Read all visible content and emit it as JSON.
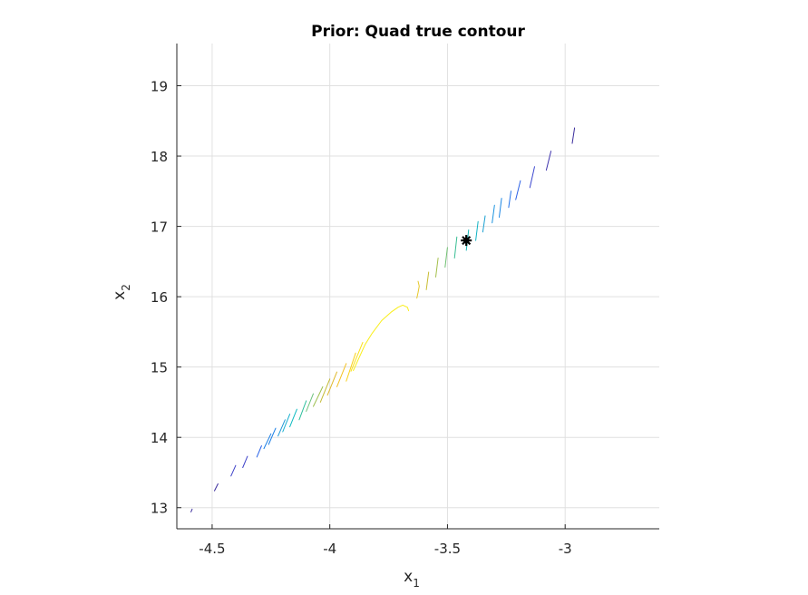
{
  "chart_data": {
    "type": "contour",
    "title": "Prior: Quad true contour",
    "xlabel": "x",
    "xlabel_sub": "1",
    "ylabel": "x",
    "ylabel_sub": "2",
    "xlim": [
      -4.65,
      -2.6
    ],
    "ylim": [
      12.7,
      19.6
    ],
    "xticks": [
      -4.5,
      -4,
      -3.5,
      -3
    ],
    "xtick_labels": [
      "-4.5",
      "-4",
      "-3.5",
      "-3"
    ],
    "yticks": [
      13,
      14,
      15,
      16,
      17,
      18,
      19
    ],
    "ytick_labels": [
      "13",
      "14",
      "15",
      "16",
      "17",
      "18",
      "19"
    ],
    "grid": true,
    "colormap": "parula",
    "marker": {
      "x": -3.42,
      "y": 16.8,
      "color": "#000000",
      "symbol": "star"
    },
    "segments": [
      {
        "x": [
          -4.59,
          -4.585
        ],
        "y": [
          12.94,
          12.98
        ],
        "color": "#3a2c9c"
      },
      {
        "x": [
          -4.49,
          -4.475
        ],
        "y": [
          13.24,
          13.34
        ],
        "color": "#3a2c9c"
      },
      {
        "x": [
          -4.42,
          -4.4
        ],
        "y": [
          13.45,
          13.6
        ],
        "color": "#3d41c8"
      },
      {
        "x": [
          -4.37,
          -4.35
        ],
        "y": [
          13.57,
          13.73
        ],
        "color": "#3d41c8"
      },
      {
        "x": [
          -4.31,
          -4.29
        ],
        "y": [
          13.72,
          13.88
        ],
        "color": "#2a63e8"
      },
      {
        "x": [
          -4.28,
          -4.25
        ],
        "y": [
          13.84,
          14.05
        ],
        "color": "#1b7fe6"
      },
      {
        "x": [
          -4.26,
          -4.23
        ],
        "y": [
          13.9,
          14.13
        ],
        "color": "#1b7fe6"
      },
      {
        "x": [
          -4.22,
          -4.19
        ],
        "y": [
          14.02,
          14.25
        ],
        "color": "#1f97d6"
      },
      {
        "x": [
          -4.2,
          -4.17
        ],
        "y": [
          14.08,
          14.33
        ],
        "color": "#13aecf"
      },
      {
        "x": [
          -4.17,
          -4.14
        ],
        "y": [
          14.15,
          14.4
        ],
        "color": "#0cbac0"
      },
      {
        "x": [
          -4.13,
          -4.1
        ],
        "y": [
          14.25,
          14.52
        ],
        "color": "#2ebf9d"
      },
      {
        "x": [
          -4.1,
          -4.07
        ],
        "y": [
          14.37,
          14.62
        ],
        "color": "#6bc17a"
      },
      {
        "x": [
          -4.07,
          -4.03
        ],
        "y": [
          14.44,
          14.72
        ],
        "color": "#9ec051"
      },
      {
        "x": [
          -4.04,
          -4.0
        ],
        "y": [
          14.5,
          14.83
        ],
        "color": "#c4bb35"
      },
      {
        "x": [
          -4.01,
          -3.97
        ],
        "y": [
          14.6,
          14.93
        ],
        "color": "#dfb82a"
      },
      {
        "x": [
          -3.97,
          -3.93
        ],
        "y": [
          14.72,
          15.05
        ],
        "color": "#f3c022"
      },
      {
        "x": [
          -3.93,
          -3.89
        ],
        "y": [
          14.8,
          15.2
        ],
        "color": "#f9d11c"
      },
      {
        "x": [
          -3.91,
          -3.86
        ],
        "y": [
          14.94,
          15.35
        ],
        "color": "#fbe01a"
      },
      {
        "x": [
          -3.9,
          -3.88,
          -3.85,
          -3.82,
          -3.78,
          -3.74,
          -3.71,
          -3.69,
          -3.67,
          -3.665
        ],
        "y": [
          14.95,
          15.1,
          15.32,
          15.48,
          15.66,
          15.78,
          15.85,
          15.88,
          15.85,
          15.8
        ],
        "color": "#f9ee18"
      },
      {
        "x": [
          -3.63,
          -3.625,
          -3.62,
          -3.625
        ],
        "y": [
          15.98,
          16.06,
          16.15,
          16.22
        ],
        "color": "#e7c82a"
      },
      {
        "x": [
          -3.59,
          -3.58
        ],
        "y": [
          16.1,
          16.35
        ],
        "color": "#c9bd33"
      },
      {
        "x": [
          -3.55,
          -3.54
        ],
        "y": [
          16.28,
          16.55
        ],
        "color": "#a3bf4a"
      },
      {
        "x": [
          -3.51,
          -3.5
        ],
        "y": [
          16.42,
          16.7
        ],
        "color": "#6fc071"
      },
      {
        "x": [
          -3.47,
          -3.46
        ],
        "y": [
          16.55,
          16.85
        ],
        "color": "#36bd92"
      },
      {
        "x": [
          -3.42,
          -3.41
        ],
        "y": [
          16.66,
          16.95
        ],
        "color": "#14b6b4"
      },
      {
        "x": [
          -3.38,
          -3.37
        ],
        "y": [
          16.8,
          17.07
        ],
        "color": "#10b2c3"
      },
      {
        "x": [
          -3.35,
          -3.34
        ],
        "y": [
          16.92,
          17.15
        ],
        "color": "#1ca1d2"
      },
      {
        "x": [
          -3.31,
          -3.3
        ],
        "y": [
          17.05,
          17.3
        ],
        "color": "#1c93df"
      },
      {
        "x": [
          -3.28,
          -3.27
        ],
        "y": [
          17.13,
          17.4
        ],
        "color": "#1b86e5"
      },
      {
        "x": [
          -3.24,
          -3.23
        ],
        "y": [
          17.27,
          17.5
        ],
        "color": "#2473ea"
      },
      {
        "x": [
          -3.21,
          -3.19
        ],
        "y": [
          17.38,
          17.65
        ],
        "color": "#2d62e6"
      },
      {
        "x": [
          -3.15,
          -3.13
        ],
        "y": [
          17.55,
          17.85
        ],
        "color": "#3b47cf"
      },
      {
        "x": [
          -3.08,
          -3.06
        ],
        "y": [
          17.8,
          18.07
        ],
        "color": "#3e33ad"
      },
      {
        "x": [
          -2.97,
          -2.96
        ],
        "y": [
          18.18,
          18.4
        ],
        "color": "#3a2c9c"
      }
    ]
  }
}
